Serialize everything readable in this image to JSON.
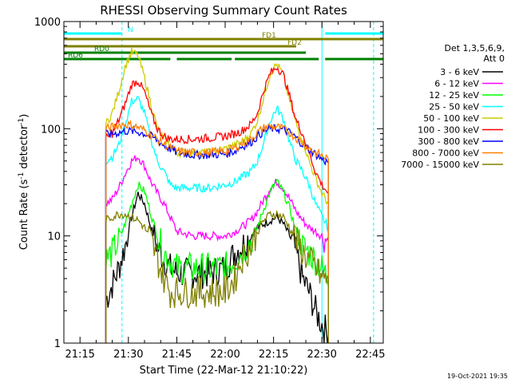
{
  "chart_data": {
    "type": "line",
    "title": "RHESSI Observing Summary Count Rates",
    "xlabel": "Start Time (22-Mar-12 21:10:22)",
    "ylabel": "Count Rate (s⁻¹ detector⁻¹)",
    "ylabel_parts": [
      "Count Rate (s",
      "-1",
      " detector",
      "-1",
      ")"
    ],
    "y_scale": "log",
    "ylim": [
      1,
      1000
    ],
    "y_ticks": [
      {
        "v": 1,
        "label": "1"
      },
      {
        "v": 10,
        "label": "10"
      },
      {
        "v": 100,
        "label": "100"
      },
      {
        "v": 1000,
        "label": "1000"
      }
    ],
    "xlim": [
      "21:10",
      "22:49"
    ],
    "x_ticks": [
      "21:15",
      "21:30",
      "21:45",
      "22:00",
      "22:15",
      "22:30",
      "22:45"
    ],
    "legend_placement": "right",
    "legend_header": [
      "Det 1,3,5,6,9,",
      "Att 0"
    ],
    "footer": "19-Oct-2021 19:35",
    "markers": {
      "cyan_solid": [
        "21:10",
        "22:30"
      ],
      "cyan_dashed": [
        "21:28",
        "22:46"
      ]
    },
    "bars": [
      {
        "label": "N",
        "color": "#00ffff",
        "segments": [
          [
            "21:10",
            "21:28"
          ],
          [
            "22:31",
            "22:49"
          ]
        ]
      },
      {
        "label": "FD1",
        "color": "#808000",
        "segments": [
          [
            "21:10",
            "22:49"
          ]
        ]
      },
      {
        "label": "FD2",
        "color": "#808000",
        "segments": [
          [
            "21:10",
            "22:22"
          ]
        ]
      },
      {
        "label": "RD0",
        "color": "#008000",
        "segments": [
          [
            "21:10",
            "22:25"
          ]
        ]
      },
      {
        "label": "RD6",
        "color": "#008000",
        "segments": [
          [
            "21:10",
            "21:43"
          ],
          [
            "21:45",
            "22:02"
          ],
          [
            "22:03",
            "22:29"
          ],
          [
            "22:31",
            "22:49"
          ]
        ]
      }
    ],
    "x": [
      "21:23",
      "21:25",
      "21:27",
      "21:29",
      "21:31",
      "21:33",
      "21:35",
      "21:37",
      "21:39",
      "21:41",
      "21:43",
      "21:45",
      "21:50",
      "21:55",
      "22:00",
      "22:03",
      "22:05",
      "22:08",
      "22:10",
      "22:12",
      "22:14",
      "22:16",
      "22:18",
      "22:20",
      "22:22",
      "22:24",
      "22:26",
      "22:28",
      "22:30",
      "22:32"
    ],
    "series": [
      {
        "name": "3 - 6 keV",
        "color": "#000000",
        "values": [
          2.5,
          3.5,
          5,
          8,
          15,
          25,
          20,
          12,
          8,
          6,
          5,
          4.5,
          4.5,
          4.5,
          5,
          7,
          8,
          10,
          12,
          13,
          14,
          15,
          13,
          10,
          7,
          4,
          3,
          2,
          1.5,
          1.2
        ]
      },
      {
        "name": "6 - 12 keV",
        "color": "#ff00ff",
        "values": [
          20,
          22,
          28,
          38,
          50,
          55,
          45,
          32,
          25,
          20,
          15,
          11,
          10,
          10,
          10,
          11,
          12,
          14,
          17,
          22,
          28,
          32,
          28,
          22,
          17,
          14,
          12,
          11,
          10,
          9
        ]
      },
      {
        "name": "12 - 25 keV",
        "color": "#00ff00",
        "values": [
          6,
          7,
          9,
          13,
          20,
          30,
          26,
          16,
          10,
          7,
          6,
          5,
          5,
          5,
          5,
          6,
          7,
          9,
          12,
          18,
          26,
          32,
          26,
          18,
          11,
          8,
          7,
          6,
          5,
          4
        ]
      },
      {
        "name": "25 - 50 keV",
        "color": "#00ffff",
        "values": [
          50,
          55,
          70,
          110,
          180,
          190,
          140,
          80,
          50,
          40,
          30,
          28,
          28,
          28,
          30,
          32,
          35,
          40,
          50,
          75,
          120,
          155,
          125,
          75,
          50,
          40,
          30,
          20,
          15,
          12
        ]
      },
      {
        "name": "50 - 100 keV",
        "color": "#cccc00",
        "values": [
          110,
          140,
          220,
          380,
          520,
          480,
          300,
          170,
          100,
          80,
          70,
          60,
          60,
          60,
          65,
          70,
          75,
          90,
          120,
          200,
          330,
          400,
          320,
          180,
          110,
          80,
          50,
          35,
          25,
          20
        ]
      },
      {
        "name": "100 - 300 keV",
        "color": "#ff0000",
        "values": [
          80,
          90,
          120,
          170,
          260,
          280,
          220,
          140,
          100,
          85,
          80,
          80,
          80,
          82,
          85,
          90,
          95,
          110,
          140,
          230,
          330,
          380,
          320,
          200,
          120,
          90,
          60,
          40,
          30,
          25
        ]
      },
      {
        "name": "300 - 800 keV",
        "color": "#0000ff",
        "values": [
          88,
          90,
          92,
          95,
          95,
          93,
          90,
          85,
          78,
          70,
          65,
          60,
          57,
          57,
          58,
          62,
          68,
          75,
          85,
          95,
          100,
          100,
          98,
          92,
          82,
          72,
          64,
          58,
          52,
          48
        ]
      },
      {
        "name": "800 - 7000 keV",
        "color": "#ff8000",
        "values": [
          100,
          104,
          108,
          110,
          108,
          103,
          97,
          88,
          80,
          72,
          66,
          62,
          60,
          60,
          62,
          66,
          72,
          80,
          92,
          102,
          106,
          104,
          100,
          92,
          82,
          74,
          66,
          60,
          56,
          52
        ]
      },
      {
        "name": "7000 - 15000 keV",
        "color": "#808000",
        "values": [
          14,
          15,
          16,
          16,
          15,
          14,
          12,
          9,
          6,
          4,
          3,
          3,
          3,
          3,
          3,
          4,
          6,
          8,
          11,
          14,
          16,
          16,
          15,
          12,
          9,
          7,
          6,
          5,
          4,
          4
        ]
      }
    ]
  }
}
